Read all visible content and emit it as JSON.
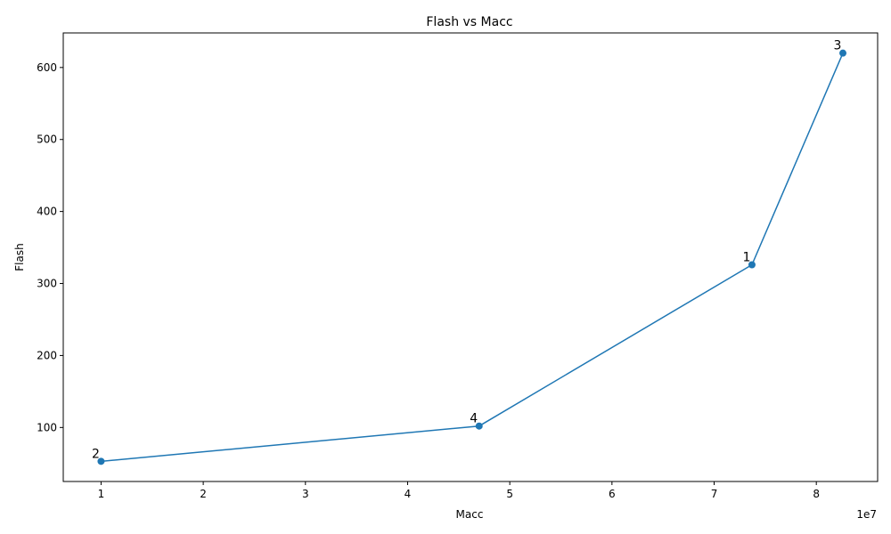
{
  "chart_data": {
    "type": "line",
    "title": "Flash vs Macc",
    "xlabel": "Macc",
    "ylabel": "Flash",
    "x_offset_label": "1e7",
    "xlim": [
      6300000,
      86000000
    ],
    "ylim": [
      25,
      648
    ],
    "x_scale": 10000000,
    "xticks": [
      1,
      2,
      3,
      4,
      5,
      6,
      7,
      8
    ],
    "yticks": [
      100,
      200,
      300,
      400,
      500,
      600
    ],
    "grid": false,
    "color": "#1f77b4",
    "series": [
      {
        "name": "",
        "points": [
          {
            "x": 10000000,
            "y": 53,
            "label": "2"
          },
          {
            "x": 47000000,
            "y": 102,
            "label": "4"
          },
          {
            "x": 73700000,
            "y": 326,
            "label": "1"
          },
          {
            "x": 82600000,
            "y": 620,
            "label": "3"
          }
        ]
      }
    ]
  }
}
